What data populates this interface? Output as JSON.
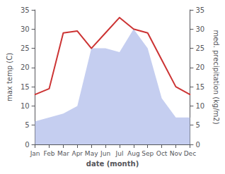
{
  "chart_data": {
    "type": "line",
    "xlabel": "date (month)",
    "ylabel": "max temp (C)",
    "y2label": "med. precipitation (kg/m2)",
    "categories": [
      "Jan",
      "Feb",
      "Mar",
      "Apr",
      "May",
      "Jun",
      "Jul",
      "Aug",
      "Sep",
      "Oct",
      "Nov",
      "Dec"
    ],
    "series": [
      {
        "type": "area",
        "axis": "y2",
        "color": "#c5cef0",
        "values": [
          6,
          7,
          8,
          10,
          25,
          25,
          24,
          30,
          25,
          12,
          7,
          7
        ]
      },
      {
        "type": "line",
        "color": "#cc3333",
        "values": [
          13,
          14.5,
          29,
          29.5,
          25,
          29,
          33,
          30,
          29,
          22,
          15,
          13
        ]
      }
    ],
    "ylim": [
      0,
      35
    ],
    "yticks": [
      0,
      5,
      10,
      15,
      20,
      25,
      30,
      35
    ],
    "y2lim": [
      0,
      35
    ],
    "y2ticks": [
      0,
      5,
      10,
      15,
      20,
      25,
      30,
      35
    ],
    "grid": false
  }
}
